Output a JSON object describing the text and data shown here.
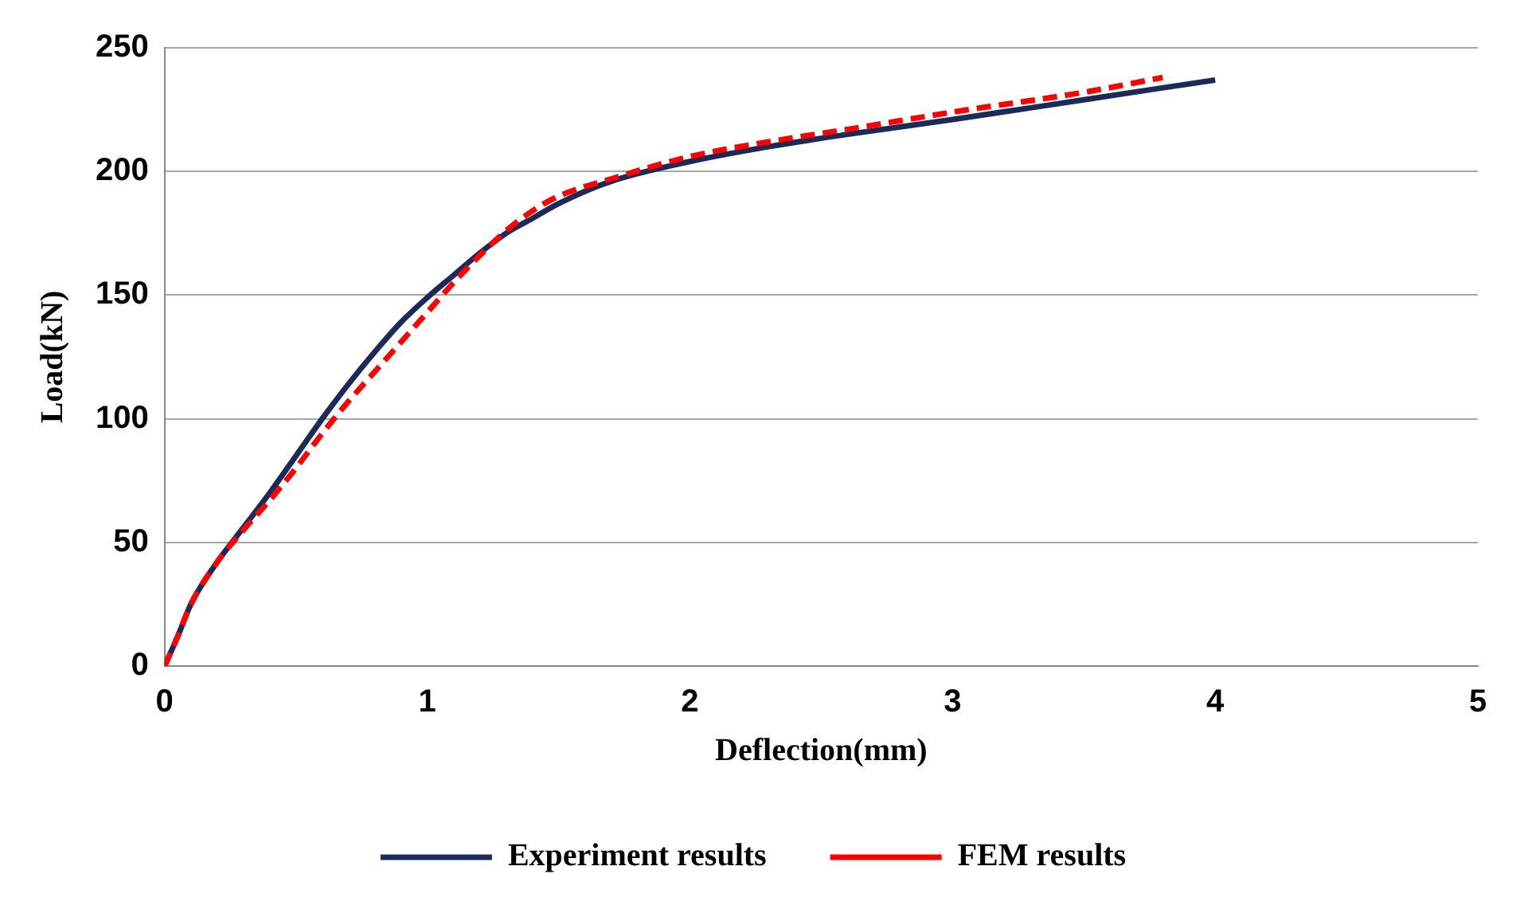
{
  "chart_data": {
    "type": "line",
    "xlabel": "Deflection(mm)",
    "ylabel": "Load(kN)",
    "xlim": [
      0,
      5
    ],
    "xticks": [
      0,
      1,
      2,
      3,
      4,
      5
    ],
    "ylim": [
      0,
      250
    ],
    "yticks": [
      0,
      50,
      100,
      150,
      200,
      250
    ],
    "grid": "y",
    "legend": "bottom",
    "marker": "none",
    "series": [
      {
        "name": "Experiment results",
        "color": "#1c2a5a",
        "line_style": "solid",
        "x": [
          0,
          0.05,
          0.1,
          0.2,
          0.3,
          0.4,
          0.5,
          0.6,
          0.7,
          0.8,
          0.9,
          1.0,
          1.1,
          1.2,
          1.3,
          1.4,
          1.5,
          1.7,
          2.0,
          2.3,
          2.6,
          3.0,
          3.5,
          4.0
        ],
        "values": [
          0,
          12,
          25,
          42,
          56,
          70,
          85,
          100,
          114,
          127,
          139,
          149,
          158,
          167,
          175,
          181,
          187,
          196,
          204,
          210,
          215,
          221,
          229,
          237
        ]
      },
      {
        "name": "FEM results",
        "color": "#ff0000",
        "line_style": "dashed",
        "x": [
          0,
          0.05,
          0.1,
          0.2,
          0.3,
          0.4,
          0.5,
          0.6,
          0.7,
          0.8,
          0.9,
          1.0,
          1.1,
          1.2,
          1.3,
          1.4,
          1.5,
          1.7,
          2.0,
          2.3,
          2.6,
          3.0,
          3.5,
          3.8
        ],
        "values": [
          0,
          12,
          25,
          42,
          55,
          67,
          80,
          94,
          107,
          119,
          131,
          143,
          155,
          166,
          176,
          184,
          190,
          197,
          206,
          212,
          217,
          224,
          232,
          238
        ]
      }
    ]
  }
}
